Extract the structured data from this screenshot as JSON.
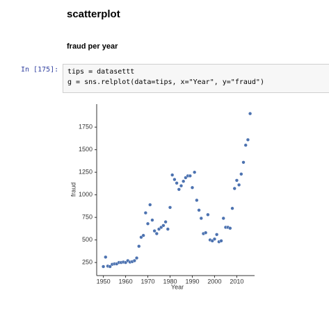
{
  "heading": "scatterplot",
  "subheading": "fraud per year",
  "cell": {
    "prompt": "In [175]:",
    "code": [
      "tips = datasettt",
      "g = sns.relplot(data=tips, x=\"Year\", y=\"fraud\")"
    ]
  },
  "chart_data": {
    "type": "scatter",
    "xlabel": "Year",
    "ylabel": "fraud",
    "color": "#4c72b0",
    "x": [
      1950,
      1951,
      1952,
      1953,
      1954,
      1955,
      1956,
      1957,
      1958,
      1959,
      1960,
      1961,
      1962,
      1963,
      1964,
      1965,
      1966,
      1967,
      1968,
      1969,
      1970,
      1971,
      1972,
      1973,
      1974,
      1975,
      1976,
      1977,
      1978,
      1979,
      1980,
      1981,
      1982,
      1983,
      1984,
      1985,
      1986,
      1987,
      1988,
      1989,
      1990,
      1991,
      1992,
      1993,
      1994,
      1995,
      1996,
      1997,
      1998,
      1999,
      2000,
      2001,
      2002,
      2003,
      2004,
      2005,
      2006,
      2007,
      2008,
      2009,
      2010,
      2011,
      2012,
      2013,
      2014,
      2015,
      2016
    ],
    "values": [
      205,
      310,
      210,
      205,
      230,
      235,
      235,
      250,
      250,
      255,
      250,
      270,
      255,
      260,
      270,
      300,
      430,
      530,
      550,
      800,
      680,
      890,
      720,
      600,
      570,
      620,
      640,
      660,
      700,
      620,
      860,
      1220,
      1170,
      1130,
      1060,
      1100,
      1150,
      1190,
      1210,
      1210,
      1080,
      1250,
      940,
      830,
      740,
      570,
      580,
      780,
      500,
      490,
      510,
      560,
      480,
      490,
      740,
      640,
      640,
      630,
      850,
      1070,
      1160,
      1110,
      1230,
      1360,
      1550,
      1610,
      1900
    ],
    "xlim": [
      1947,
      2018
    ],
    "ylim": [
      105,
      2005
    ],
    "xticks": [
      1950,
      1960,
      1970,
      1980,
      1990,
      2000,
      2010
    ],
    "yticks": [
      250,
      500,
      750,
      1000,
      1250,
      1500,
      1750
    ]
  }
}
